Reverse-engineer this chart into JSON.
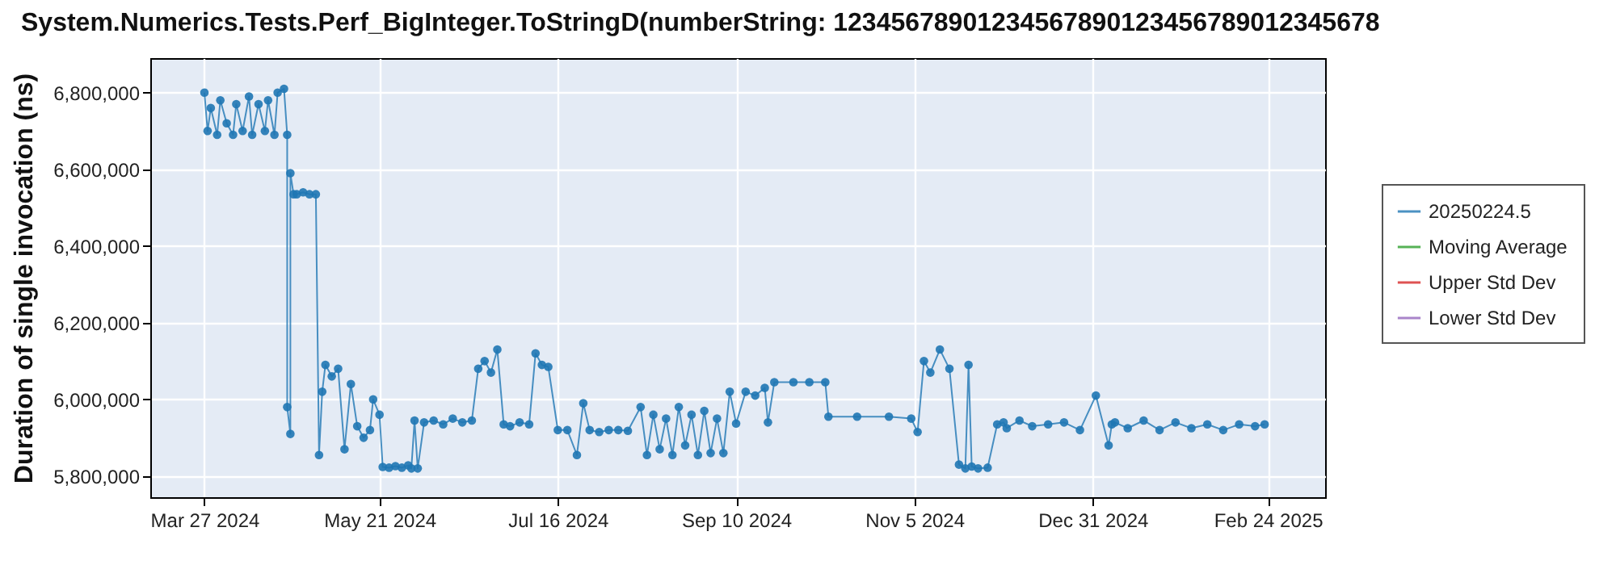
{
  "chart_data": {
    "type": "line",
    "title": "System.Numerics.Tests.Perf_BigInteger.ToStringD(numberString: 12345678901234567890123456789012345678",
    "ylabel": "Duration of single invocation (ns)",
    "xlim": [
      "2024-03-10",
      "2025-03-14"
    ],
    "ylim": [
      5745000,
      6890000
    ],
    "xticks": [
      {
        "value": "2024-03-27",
        "label": "Mar 27 2024"
      },
      {
        "value": "2024-05-21",
        "label": "May 21 2024"
      },
      {
        "value": "2024-07-16",
        "label": "Jul 16 2024"
      },
      {
        "value": "2024-09-10",
        "label": "Sep 10 2024"
      },
      {
        "value": "2024-11-05",
        "label": "Nov 5 2024"
      },
      {
        "value": "2024-12-31",
        "label": "Dec 31 2024"
      },
      {
        "value": "2025-02-24",
        "label": "Feb 24 2025"
      }
    ],
    "yticks": [
      {
        "value": 5800000,
        "label": "5,800,000"
      },
      {
        "value": 6000000,
        "label": "6,000,000"
      },
      {
        "value": 6200000,
        "label": "6,200,000"
      },
      {
        "value": 6400000,
        "label": "6,400,000"
      },
      {
        "value": 6600000,
        "label": "6,600,000"
      },
      {
        "value": 6800000,
        "label": "6,800,000"
      }
    ],
    "grid": true,
    "legend": "right",
    "marker": "circle",
    "line_style": "solid",
    "x": [
      "2024-03-27",
      "2024-03-28",
      "2024-03-29",
      "2024-03-31",
      "2024-04-01",
      "2024-04-03",
      "2024-04-05",
      "2024-04-06",
      "2024-04-08",
      "2024-04-10",
      "2024-04-11",
      "2024-04-13",
      "2024-04-15",
      "2024-04-16",
      "2024-04-18",
      "2024-04-19",
      "2024-04-21",
      "2024-04-22",
      "2024-04-22",
      "2024-04-23",
      "2024-04-23",
      "2024-04-24",
      "2024-04-25",
      "2024-04-27",
      "2024-04-29",
      "2024-05-01",
      "2024-05-02",
      "2024-05-03",
      "2024-05-04",
      "2024-05-06",
      "2024-05-08",
      "2024-05-10",
      "2024-05-12",
      "2024-05-14",
      "2024-05-16",
      "2024-05-18",
      "2024-05-19",
      "2024-05-21",
      "2024-05-22",
      "2024-05-24",
      "2024-05-26",
      "2024-05-28",
      "2024-05-30",
      "2024-05-31",
      "2024-06-01",
      "2024-06-02",
      "2024-06-04",
      "2024-06-07",
      "2024-06-10",
      "2024-06-13",
      "2024-06-16",
      "2024-06-19",
      "2024-06-21",
      "2024-06-23",
      "2024-06-25",
      "2024-06-27",
      "2024-06-29",
      "2024-07-01",
      "2024-07-04",
      "2024-07-07",
      "2024-07-09",
      "2024-07-11",
      "2024-07-13",
      "2024-07-16",
      "2024-07-19",
      "2024-07-22",
      "2024-07-24",
      "2024-07-26",
      "2024-07-29",
      "2024-08-01",
      "2024-08-04",
      "2024-08-07",
      "2024-08-11",
      "2024-08-13",
      "2024-08-15",
      "2024-08-17",
      "2024-08-19",
      "2024-08-21",
      "2024-08-23",
      "2024-08-25",
      "2024-08-27",
      "2024-08-29",
      "2024-08-31",
      "2024-09-02",
      "2024-09-04",
      "2024-09-06",
      "2024-09-08",
      "2024-09-10",
      "2024-09-13",
      "2024-09-16",
      "2024-09-19",
      "2024-09-20",
      "2024-09-22",
      "2024-09-28",
      "2024-10-03",
      "2024-10-08",
      "2024-10-09",
      "2024-10-18",
      "2024-10-28",
      "2024-11-04",
      "2024-11-06",
      "2024-11-08",
      "2024-11-10",
      "2024-11-13",
      "2024-11-16",
      "2024-11-19",
      "2024-11-21",
      "2024-11-22",
      "2024-11-23",
      "2024-11-25",
      "2024-11-28",
      "2024-12-01",
      "2024-12-03",
      "2024-12-04",
      "2024-12-08",
      "2024-12-12",
      "2024-12-17",
      "2024-12-22",
      "2024-12-27",
      "2025-01-01",
      "2025-01-05",
      "2025-01-06",
      "2025-01-07",
      "2025-01-11",
      "2025-01-16",
      "2025-01-21",
      "2025-01-26",
      "2025-01-31",
      "2025-02-05",
      "2025-02-10",
      "2025-02-15",
      "2025-02-20",
      "2025-02-23"
    ],
    "series": [
      {
        "name": "20250224.5",
        "color": "#1f77b4",
        "values": [
          6800000,
          6700000,
          6760000,
          6690000,
          6780000,
          6720000,
          6690000,
          6770000,
          6700000,
          6790000,
          6690000,
          6770000,
          6700000,
          6780000,
          6690000,
          6800000,
          6810000,
          6690000,
          5980000,
          5910000,
          6590000,
          6535000,
          6535000,
          6540000,
          6535000,
          6535000,
          5855000,
          6020000,
          6090000,
          6060000,
          6080000,
          5870000,
          6040000,
          5930000,
          5900000,
          5920000,
          6000000,
          5960000,
          5824000,
          5822000,
          5826000,
          5822000,
          5828000,
          5820000,
          5945000,
          5820000,
          5940000,
          5945000,
          5935000,
          5950000,
          5940000,
          5945000,
          6080000,
          6100000,
          6070000,
          6130000,
          5935000,
          5930000,
          5940000,
          5935000,
          6120000,
          6090000,
          6085000,
          5920000,
          5920000,
          5855000,
          5990000,
          5920000,
          5915000,
          5920000,
          5920000,
          5918000,
          5980000,
          5855000,
          5960000,
          5870000,
          5950000,
          5855000,
          5980000,
          5880000,
          5960000,
          5855000,
          5970000,
          5860000,
          5950000,
          5860000,
          6020000,
          5937000,
          6020000,
          6010000,
          6030000,
          5940000,
          6045000,
          6045000,
          6045000,
          6045000,
          5955000,
          5955000,
          5955000,
          5950000,
          5915000,
          6100000,
          6070000,
          6130000,
          6080000,
          5830000,
          5820000,
          6090000,
          5825000,
          5820000,
          5822000,
          5935000,
          5940000,
          5925000,
          5945000,
          5930000,
          5935000,
          5940000,
          5920000,
          6010000,
          5880000,
          5935000,
          5940000,
          5925000,
          5945000,
          5920000,
          5940000,
          5925000,
          5935000,
          5920000,
          5935000,
          5930000,
          5935000
        ]
      },
      {
        "name": "Moving Average",
        "color": "#2ca02c",
        "values": [
          null,
          null,
          null,
          null,
          null,
          null,
          null,
          null,
          null,
          null,
          null,
          null,
          null,
          null,
          null,
          null,
          null,
          null,
          null,
          null,
          null,
          null,
          null,
          null,
          null,
          null,
          null,
          null,
          null,
          null,
          null,
          null,
          null,
          null,
          null,
          null,
          null,
          null,
          null,
          null,
          null,
          null,
          null,
          null,
          null,
          null,
          null,
          null,
          null,
          null,
          null,
          null,
          null,
          null,
          null,
          null,
          null,
          null,
          null,
          null,
          null,
          null,
          null,
          null,
          null,
          null,
          null,
          null,
          null,
          null,
          null,
          null,
          null,
          null,
          null,
          null,
          null,
          null,
          null,
          null,
          null,
          null,
          null,
          null,
          null,
          null,
          null,
          null,
          null,
          null,
          null,
          null,
          null,
          null,
          null,
          null,
          null,
          null,
          null,
          null,
          null,
          null,
          null,
          null,
          null,
          null,
          null,
          null,
          null,
          null,
          null,
          null,
          null,
          null,
          null,
          null,
          null,
          null,
          null,
          null,
          null,
          null,
          null,
          null,
          null,
          null,
          null,
          null,
          null,
          null,
          null,
          null,
          null
        ]
      },
      {
        "name": "Upper Std Dev",
        "color": "#d62728",
        "values": [
          null,
          null,
          null,
          null,
          null,
          null,
          null,
          null,
          null,
          null,
          null,
          null,
          null,
          null,
          null,
          null,
          null,
          null,
          null,
          null,
          null,
          null,
          null,
          null,
          null,
          null,
          null,
          null,
          null,
          null,
          null,
          null,
          null,
          null,
          null,
          null,
          null,
          null,
          null,
          null,
          null,
          null,
          null,
          null,
          null,
          null,
          null,
          null,
          null,
          null,
          null,
          null,
          null,
          null,
          null,
          null,
          null,
          null,
          null,
          null,
          null,
          null,
          null,
          null,
          null,
          null,
          null,
          null,
          null,
          null,
          null,
          null,
          null,
          null,
          null,
          null,
          null,
          null,
          null,
          null,
          null,
          null,
          null,
          null,
          null,
          null,
          null,
          null,
          null,
          null,
          null,
          null,
          null,
          null,
          null,
          null,
          null,
          null,
          null,
          null,
          null,
          null,
          null,
          null,
          null,
          null,
          null,
          null,
          null,
          null,
          null,
          null,
          null,
          null,
          null,
          null,
          null,
          null,
          null,
          null,
          null,
          null,
          null,
          null,
          null,
          null,
          null,
          null,
          null,
          null,
          null,
          null,
          null
        ]
      },
      {
        "name": "Lower Std Dev",
        "color": "#9467bd",
        "values": [
          null,
          null,
          null,
          null,
          null,
          null,
          null,
          null,
          null,
          null,
          null,
          null,
          null,
          null,
          null,
          null,
          null,
          null,
          null,
          null,
          null,
          null,
          null,
          null,
          null,
          null,
          null,
          null,
          null,
          null,
          null,
          null,
          null,
          null,
          null,
          null,
          null,
          null,
          null,
          null,
          null,
          null,
          null,
          null,
          null,
          null,
          null,
          null,
          null,
          null,
          null,
          null,
          null,
          null,
          null,
          null,
          null,
          null,
          null,
          null,
          null,
          null,
          null,
          null,
          null,
          null,
          null,
          null,
          null,
          null,
          null,
          null,
          null,
          null,
          null,
          null,
          null,
          null,
          null,
          null,
          null,
          null,
          null,
          null,
          null,
          null,
          null,
          null,
          null,
          null,
          null,
          null,
          null,
          null,
          null,
          null,
          null,
          null,
          null,
          null,
          null,
          null,
          null,
          null,
          null,
          null,
          null,
          null,
          null,
          null,
          null,
          null,
          null,
          null,
          null,
          null,
          null,
          null,
          null,
          null,
          null,
          null,
          null,
          null,
          null,
          null,
          null,
          null,
          null,
          null,
          null,
          null,
          null
        ]
      }
    ]
  }
}
